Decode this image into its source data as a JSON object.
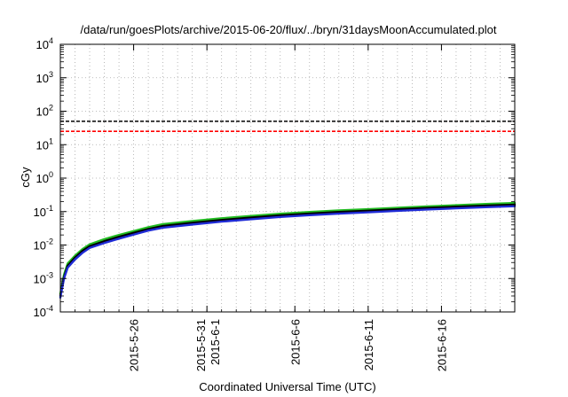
{
  "chart_data": {
    "type": "line",
    "title": "/data/run/goesPlots/archive/2015-06-20/flux/../bryn/31daysMoonAccumulated.plot",
    "xlabel": "Coordinated Universal Time (UTC)",
    "ylabel": "cGy",
    "y_scale": "log",
    "ylim_exponents": [
      -4,
      4
    ],
    "y_ticks": [
      {
        "base": "10",
        "exp": "-4",
        "value": -4
      },
      {
        "base": "10",
        "exp": "-3",
        "value": -3
      },
      {
        "base": "10",
        "exp": "-2",
        "value": -2
      },
      {
        "base": "10",
        "exp": "-1",
        "value": -1
      },
      {
        "base": "10",
        "exp": "0",
        "value": 0
      },
      {
        "base": "10",
        "exp": "1",
        "value": 1
      },
      {
        "base": "10",
        "exp": "2",
        "value": 2
      },
      {
        "base": "10",
        "exp": "3",
        "value": 3
      },
      {
        "base": "10",
        "exp": "4",
        "value": 4
      }
    ],
    "xlim": [
      "2015-05-21",
      "2015-06-21"
    ],
    "x_ticks": [
      {
        "label": "2015-5-26",
        "date": "2015-05-26"
      },
      {
        "label": "2015-5-31",
        "label2": "2015-6-1",
        "date": "2015-05-31"
      },
      {
        "label": "2015-6-6",
        "date": "2015-06-06"
      },
      {
        "label": "2015-6-11",
        "date": "2015-06-11"
      },
      {
        "label": "2015-6-16",
        "date": "2015-06-16"
      }
    ],
    "grid": true,
    "legend": "none",
    "reference_lines": [
      {
        "color": "#000000",
        "style": "dashed",
        "value": 50
      },
      {
        "color": "#ff0000",
        "style": "dashed",
        "value": 25
      }
    ],
    "series": [
      {
        "color": "#22bb22",
        "x": [
          "2015-05-21",
          "2015-05-21T06:00",
          "2015-05-21T12:00",
          "2015-05-22",
          "2015-05-22T12:00",
          "2015-05-23",
          "2015-05-24",
          "2015-05-25",
          "2015-05-26",
          "2015-05-27",
          "2015-05-28",
          "2015-05-30",
          "2015-06-01",
          "2015-06-03",
          "2015-06-05",
          "2015-06-07",
          "2015-06-09",
          "2015-06-11",
          "2015-06-13",
          "2015-06-15",
          "2015-06-17",
          "2015-06-19",
          "2015-06-21"
        ],
        "y": [
          0.00035,
          0.0013,
          0.0028,
          0.0048,
          0.0075,
          0.0105,
          0.015,
          0.02,
          0.026,
          0.034,
          0.042,
          0.052,
          0.063,
          0.074,
          0.086,
          0.097,
          0.108,
          0.118,
          0.13,
          0.142,
          0.155,
          0.168,
          0.18
        ]
      },
      {
        "color": "#000000",
        "x": [
          "2015-05-21",
          "2015-05-21T06:00",
          "2015-05-21T12:00",
          "2015-05-22",
          "2015-05-22T12:00",
          "2015-05-23",
          "2015-05-24",
          "2015-05-25",
          "2015-05-26",
          "2015-05-27",
          "2015-05-28",
          "2015-05-30",
          "2015-06-01",
          "2015-06-03",
          "2015-06-05",
          "2015-06-07",
          "2015-06-09",
          "2015-06-11",
          "2015-06-13",
          "2015-06-15",
          "2015-06-17",
          "2015-06-19",
          "2015-06-21"
        ],
        "y": [
          0.0003,
          0.0011,
          0.0024,
          0.0042,
          0.0066,
          0.0092,
          0.013,
          0.0175,
          0.023,
          0.03,
          0.037,
          0.046,
          0.056,
          0.066,
          0.077,
          0.087,
          0.097,
          0.106,
          0.117,
          0.128,
          0.139,
          0.15,
          0.161
        ]
      },
      {
        "color": "#1f2bd6",
        "x": [
          "2015-05-21",
          "2015-05-21T06:00",
          "2015-05-21T12:00",
          "2015-05-22",
          "2015-05-22T12:00",
          "2015-05-23",
          "2015-05-24",
          "2015-05-25",
          "2015-05-26",
          "2015-05-27",
          "2015-05-28",
          "2015-05-30",
          "2015-06-01",
          "2015-06-03",
          "2015-06-05",
          "2015-06-07",
          "2015-06-09",
          "2015-06-11",
          "2015-06-13",
          "2015-06-15",
          "2015-06-17",
          "2015-06-19",
          "2015-06-21"
        ],
        "y": [
          0.00027,
          0.001,
          0.0021,
          0.0037,
          0.0058,
          0.0082,
          0.0115,
          0.0155,
          0.0205,
          0.027,
          0.033,
          0.041,
          0.05,
          0.059,
          0.069,
          0.078,
          0.087,
          0.095,
          0.105,
          0.115,
          0.125,
          0.135,
          0.145
        ]
      }
    ]
  }
}
